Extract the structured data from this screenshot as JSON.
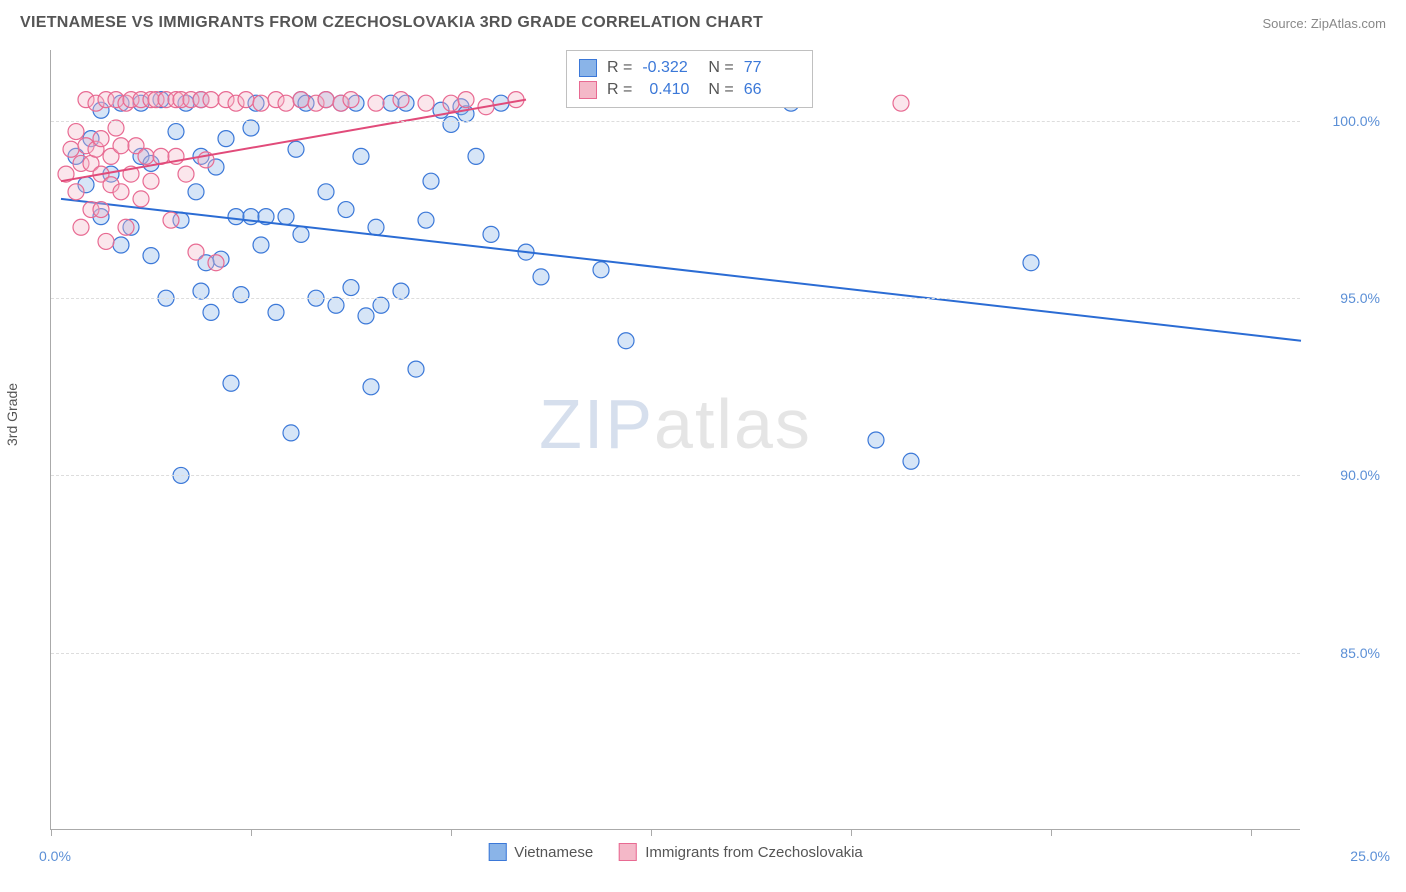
{
  "title": "VIETNAMESE VS IMMIGRANTS FROM CZECHOSLOVAKIA 3RD GRADE CORRELATION CHART",
  "source_label": "Source: ",
  "source_value": "ZipAtlas.com",
  "y_axis_title": "3rd Grade",
  "watermark_a": "ZIP",
  "watermark_b": "atlas",
  "chart": {
    "type": "scatter",
    "xlim": [
      0,
      25
    ],
    "ylim": [
      80,
      102
    ],
    "x_start_label": "0.0%",
    "x_end_label": "25.0%",
    "y_ticks": [
      85.0,
      90.0,
      95.0,
      100.0
    ],
    "y_tick_labels": [
      "85.0%",
      "90.0%",
      "95.0%",
      "100.0%"
    ],
    "x_tick_positions": [
      0,
      4,
      8,
      12,
      16,
      20,
      24
    ],
    "grid_color": "#dddddd",
    "axis_color": "#aaaaaa",
    "background_color": "#ffffff",
    "marker_radius": 8,
    "series": [
      {
        "name": "Vietnamese",
        "color_fill": "#8ab4e8",
        "color_stroke": "#3b78d8",
        "R": "-0.322",
        "N": "77",
        "trend": {
          "x1": 0.2,
          "y1": 97.8,
          "x2": 25.0,
          "y2": 93.8,
          "color": "#2b6cd4",
          "width": 2
        },
        "points": [
          [
            0.5,
            99.0
          ],
          [
            0.7,
            98.2
          ],
          [
            0.8,
            99.5
          ],
          [
            1.0,
            100.3
          ],
          [
            1.0,
            97.3
          ],
          [
            1.2,
            98.5
          ],
          [
            1.4,
            100.5
          ],
          [
            1.4,
            96.5
          ],
          [
            1.6,
            97.0
          ],
          [
            1.8,
            99.0
          ],
          [
            1.8,
            100.5
          ],
          [
            2.0,
            96.2
          ],
          [
            2.0,
            98.8
          ],
          [
            2.2,
            100.6
          ],
          [
            2.3,
            95.0
          ],
          [
            2.5,
            99.7
          ],
          [
            2.6,
            97.2
          ],
          [
            2.7,
            100.5
          ],
          [
            2.9,
            98.0
          ],
          [
            3.0,
            95.2
          ],
          [
            3.0,
            100.6
          ],
          [
            3.2,
            94.6
          ],
          [
            3.3,
            98.7
          ],
          [
            3.4,
            96.1
          ],
          [
            3.5,
            99.5
          ],
          [
            3.6,
            92.6
          ],
          [
            3.7,
            97.3
          ],
          [
            3.8,
            95.1
          ],
          [
            4.0,
            97.3
          ],
          [
            4.0,
            99.8
          ],
          [
            4.1,
            100.5
          ],
          [
            4.2,
            96.5
          ],
          [
            4.3,
            97.3
          ],
          [
            4.5,
            94.6
          ],
          [
            4.7,
            97.3
          ],
          [
            4.8,
            91.2
          ],
          [
            5.0,
            100.6
          ],
          [
            5.0,
            96.8
          ],
          [
            5.1,
            100.5
          ],
          [
            5.3,
            95.0
          ],
          [
            5.5,
            100.6
          ],
          [
            5.5,
            98.0
          ],
          [
            5.7,
            94.8
          ],
          [
            5.8,
            100.5
          ],
          [
            5.9,
            97.5
          ],
          [
            6.0,
            95.3
          ],
          [
            6.1,
            100.5
          ],
          [
            6.3,
            94.5
          ],
          [
            6.4,
            92.5
          ],
          [
            6.5,
            97.0
          ],
          [
            6.6,
            94.8
          ],
          [
            6.8,
            100.5
          ],
          [
            7.0,
            95.2
          ],
          [
            7.1,
            100.5
          ],
          [
            7.3,
            93.0
          ],
          [
            7.5,
            97.2
          ],
          [
            7.8,
            100.3
          ],
          [
            8.0,
            99.9
          ],
          [
            8.2,
            100.4
          ],
          [
            8.3,
            100.2
          ],
          [
            8.5,
            99.0
          ],
          [
            8.8,
            96.8
          ],
          [
            9.0,
            100.5
          ],
          [
            9.5,
            96.3
          ],
          [
            9.8,
            95.6
          ],
          [
            2.6,
            90.0
          ],
          [
            3.0,
            99.0
          ],
          [
            11.0,
            95.8
          ],
          [
            11.5,
            93.8
          ],
          [
            14.8,
            100.5
          ],
          [
            16.5,
            91.0
          ],
          [
            17.2,
            90.4
          ],
          [
            19.6,
            96.0
          ],
          [
            4.9,
            99.2
          ],
          [
            6.2,
            99.0
          ],
          [
            7.6,
            98.3
          ],
          [
            3.1,
            96.0
          ]
        ]
      },
      {
        "name": "Immigrants from Czechoslovakia",
        "color_fill": "#f4b8c8",
        "color_stroke": "#e86a92",
        "R": "0.410",
        "N": "66",
        "trend": {
          "x1": 0.2,
          "y1": 98.3,
          "x2": 9.5,
          "y2": 100.6,
          "color": "#e14b7a",
          "width": 2
        },
        "points": [
          [
            0.3,
            98.5
          ],
          [
            0.4,
            99.2
          ],
          [
            0.5,
            98.0
          ],
          [
            0.5,
            99.7
          ],
          [
            0.6,
            97.0
          ],
          [
            0.6,
            98.8
          ],
          [
            0.7,
            99.3
          ],
          [
            0.7,
            100.6
          ],
          [
            0.8,
            97.5
          ],
          [
            0.8,
            98.8
          ],
          [
            0.9,
            99.2
          ],
          [
            0.9,
            100.5
          ],
          [
            1.0,
            97.5
          ],
          [
            1.0,
            98.5
          ],
          [
            1.0,
            99.5
          ],
          [
            1.1,
            100.6
          ],
          [
            1.1,
            96.6
          ],
          [
            1.2,
            98.2
          ],
          [
            1.2,
            99.0
          ],
          [
            1.3,
            99.8
          ],
          [
            1.3,
            100.6
          ],
          [
            1.4,
            98.0
          ],
          [
            1.4,
            99.3
          ],
          [
            1.5,
            100.5
          ],
          [
            1.5,
            97.0
          ],
          [
            1.6,
            98.5
          ],
          [
            1.6,
            100.6
          ],
          [
            1.7,
            99.3
          ],
          [
            1.8,
            100.6
          ],
          [
            1.8,
            97.8
          ],
          [
            1.9,
            99.0
          ],
          [
            2.0,
            100.6
          ],
          [
            2.0,
            98.3
          ],
          [
            2.1,
            100.6
          ],
          [
            2.2,
            99.0
          ],
          [
            2.3,
            100.6
          ],
          [
            2.4,
            97.2
          ],
          [
            2.5,
            100.6
          ],
          [
            2.5,
            99.0
          ],
          [
            2.6,
            100.6
          ],
          [
            2.7,
            98.5
          ],
          [
            2.8,
            100.6
          ],
          [
            2.9,
            96.3
          ],
          [
            3.0,
            100.6
          ],
          [
            3.1,
            98.9
          ],
          [
            3.2,
            100.6
          ],
          [
            3.3,
            96.0
          ],
          [
            3.5,
            100.6
          ],
          [
            3.7,
            100.5
          ],
          [
            3.9,
            100.6
          ],
          [
            4.2,
            100.5
          ],
          [
            4.5,
            100.6
          ],
          [
            4.7,
            100.5
          ],
          [
            5.0,
            100.6
          ],
          [
            5.3,
            100.5
          ],
          [
            5.5,
            100.6
          ],
          [
            5.8,
            100.5
          ],
          [
            6.0,
            100.6
          ],
          [
            6.5,
            100.5
          ],
          [
            7.0,
            100.6
          ],
          [
            7.5,
            100.5
          ],
          [
            8.0,
            100.5
          ],
          [
            8.3,
            100.6
          ],
          [
            8.7,
            100.4
          ],
          [
            9.3,
            100.6
          ],
          [
            17.0,
            100.5
          ]
        ]
      }
    ]
  },
  "legend": {
    "r_label": "R =",
    "n_label": "N ="
  }
}
